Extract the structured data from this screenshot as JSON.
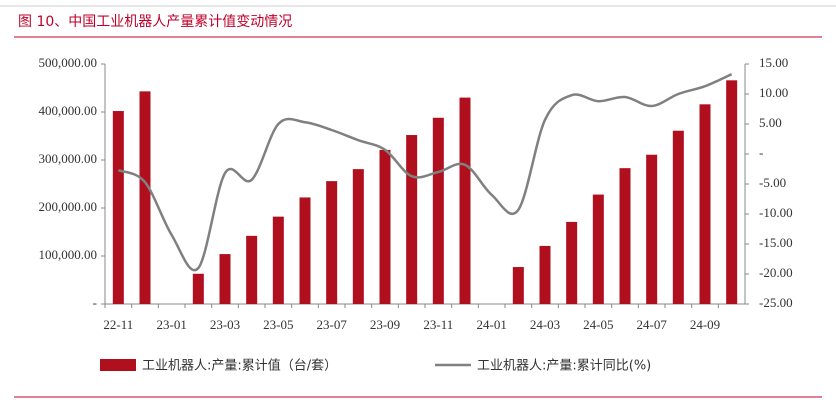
{
  "chart_data": {
    "type": "bar-line",
    "title": "图 10、中国工业机器人产量累计值变动情况",
    "categories": [
      "22-11",
      null,
      "23-01",
      null,
      "23-03",
      null,
      "23-05",
      null,
      "23-07",
      null,
      "23-09",
      null,
      "23-11",
      null,
      "24-01",
      null,
      "24-03",
      null,
      "24-05",
      null,
      "24-07",
      null,
      "24-09",
      null
    ],
    "series": [
      {
        "name": "工业机器人:产量:累计值（台/套）",
        "color": "#b0101e",
        "kind": "bar",
        "values": [
          402000,
          443000,
          null,
          63000,
          104000,
          142000,
          182000,
          222000,
          256000,
          281000,
          321000,
          352000,
          388000,
          430000,
          null,
          77000,
          121000,
          171000,
          228000,
          283000,
          311000,
          361000,
          416000,
          466000
        ]
      },
      {
        "name": "工业机器人:产量:累计同比(%)",
        "color": "#808080",
        "kind": "line",
        "axis": "y2",
        "values": [
          -2.7,
          -4.7,
          -13.5,
          -19.0,
          -3.2,
          -4.3,
          5.0,
          5.3,
          4.0,
          2.3,
          0.7,
          -3.7,
          -3.0,
          -1.8,
          -6.8,
          -9.3,
          5.7,
          9.8,
          8.8,
          9.5,
          8.0,
          10.0,
          11.3,
          13.3
        ]
      }
    ],
    "ylim": [
      0,
      500000
    ],
    "yticks": [
      {
        "value": 0,
        "label": "-"
      },
      {
        "value": 100000,
        "label": "100,000.00"
      },
      {
        "value": 200000,
        "label": "200,000.00"
      },
      {
        "value": 300000,
        "label": "300,000.00"
      },
      {
        "value": 400000,
        "label": "400,000.00"
      },
      {
        "value": 500000,
        "label": "500,000.00"
      }
    ],
    "y2lim": [
      -25,
      15
    ],
    "y2ticks": [
      {
        "value": -25,
        "label": "-25.00"
      },
      {
        "value": -20,
        "label": "-20.00"
      },
      {
        "value": -15,
        "label": "-15.00"
      },
      {
        "value": -10,
        "label": "-10.00"
      },
      {
        "value": -5,
        "label": "-5.00"
      },
      {
        "value": 0,
        "label": "-"
      },
      {
        "value": 5,
        "label": "5.00"
      },
      {
        "value": 10,
        "label": "10.00"
      },
      {
        "value": 15,
        "label": "15.00"
      }
    ]
  }
}
